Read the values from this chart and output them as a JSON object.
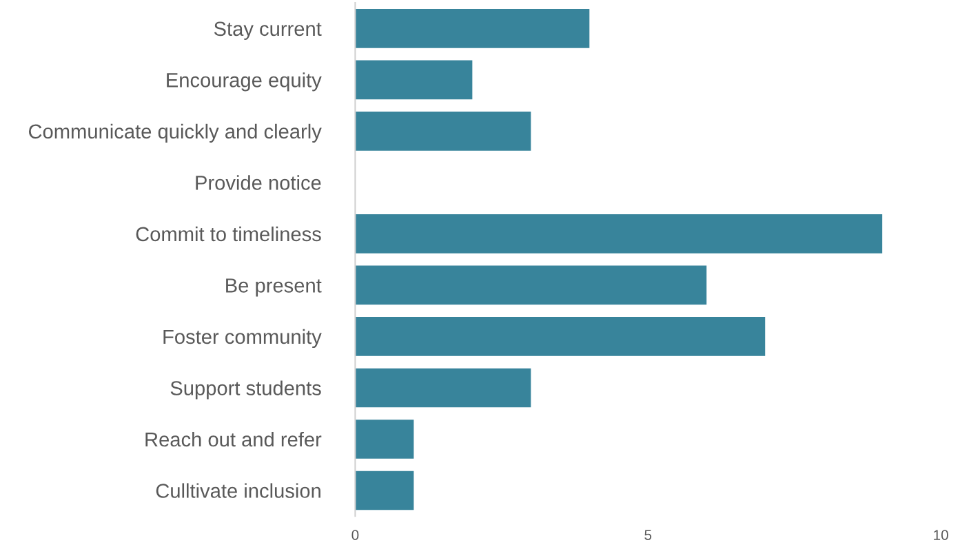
{
  "chart_data": {
    "type": "bar",
    "orientation": "horizontal",
    "categories": [
      "Stay current",
      "Encourage equity",
      "Communicate quickly and clearly",
      "Provide notice",
      "Commit to timeliness",
      "Be present",
      "Foster community",
      "Support students",
      "Reach out and refer",
      "Culltivate inclusion"
    ],
    "values": [
      4,
      2,
      3,
      0,
      9,
      6,
      7,
      3,
      1,
      1
    ],
    "color": "#38849b",
    "xlim": [
      0,
      10
    ],
    "xticks": [
      0,
      5,
      10
    ],
    "grid": false,
    "legend": false
  }
}
